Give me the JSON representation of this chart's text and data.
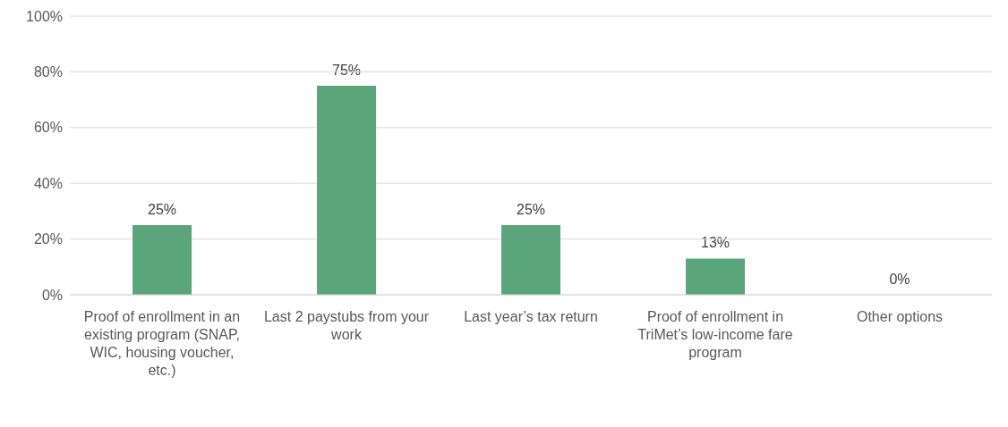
{
  "chart_data": {
    "type": "bar",
    "categories": [
      "Proof of enrollment in an existing program (SNAP, WIC, housing voucher, etc.)",
      "Last 2 paystubs from your work",
      "Last year’s tax return",
      "Proof of enrollment in TriMet’s low-income fare program",
      "Other options"
    ],
    "values": [
      25,
      75,
      25,
      13,
      0
    ],
    "value_labels": [
      "25%",
      "75%",
      "25%",
      "13%",
      "0%"
    ],
    "color": "#5ba57a",
    "ylim": [
      0,
      100
    ],
    "yticks": [
      {
        "value": 0,
        "label": "0%"
      },
      {
        "value": 20,
        "label": "20%"
      },
      {
        "value": 40,
        "label": "40%"
      },
      {
        "value": 60,
        "label": "60%"
      },
      {
        "value": 80,
        "label": "80%"
      },
      {
        "value": 100,
        "label": "100%"
      }
    ],
    "grid": "y"
  }
}
